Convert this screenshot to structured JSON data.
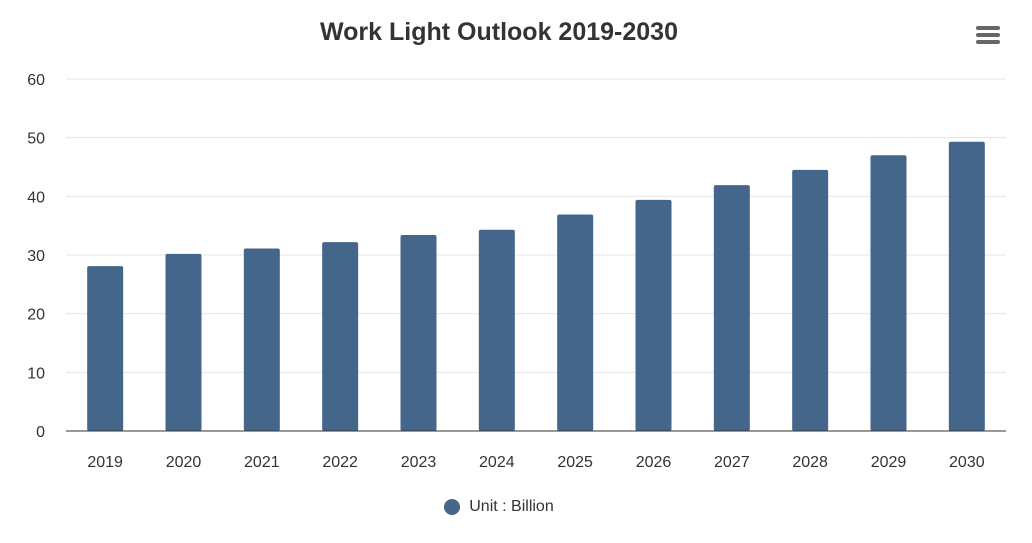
{
  "chart_data": {
    "type": "bar",
    "title": "Work Light Outlook 2019-2030",
    "categories": [
      "2019",
      "2020",
      "2021",
      "2022",
      "2023",
      "2024",
      "2025",
      "2026",
      "2027",
      "2028",
      "2029",
      "2030"
    ],
    "series": [
      {
        "name": "Unit : Billion",
        "values": [
          28.1,
          30.2,
          31.1,
          32.2,
          33.4,
          34.3,
          36.9,
          39.4,
          41.9,
          44.5,
          47.0,
          49.3
        ],
        "color": "#44668a"
      }
    ],
    "ylim": [
      0,
      60
    ],
    "yticks": [
      "0",
      "10",
      "20",
      "30",
      "40",
      "50",
      "60"
    ],
    "grid": true,
    "legend_position": "bottom-center"
  },
  "toolbar": {
    "menu_icon": "hamburger-menu-icon"
  }
}
